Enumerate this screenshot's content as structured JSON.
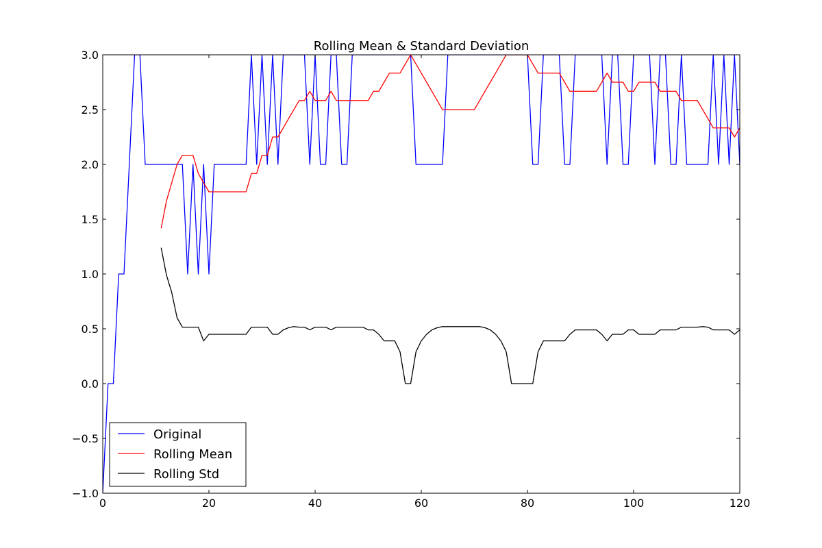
{
  "chart_data": {
    "type": "line",
    "title": "Rolling Mean & Standard Deviation",
    "xlabel": "",
    "ylabel": "",
    "xlim": [
      0,
      120
    ],
    "ylim": [
      -1.0,
      3.0
    ],
    "xticks": [
      0,
      20,
      40,
      60,
      80,
      100,
      120
    ],
    "xtick_labels": [
      "0",
      "20",
      "40",
      "60",
      "80",
      "100",
      "120"
    ],
    "yticks": [
      -1.0,
      -0.5,
      0.0,
      0.5,
      1.0,
      1.5,
      2.0,
      2.5,
      3.0
    ],
    "ytick_labels": [
      "−1.0",
      "−0.5",
      "0.0",
      "0.5",
      "1.0",
      "1.5",
      "2.0",
      "2.5",
      "3.0"
    ],
    "grid": false,
    "legend_position": "lower-left",
    "series": [
      {
        "name": "Original",
        "color": "#0000ff",
        "x": [
          0,
          1,
          2,
          3,
          4,
          5,
          6,
          7,
          8,
          9,
          10,
          11,
          12,
          13,
          14,
          15,
          16,
          17,
          18,
          19,
          20,
          21,
          22,
          23,
          24,
          25,
          26,
          27,
          28,
          29,
          30,
          31,
          32,
          33,
          34,
          35,
          36,
          37,
          38,
          39,
          40,
          41,
          42,
          43,
          44,
          45,
          46,
          47,
          48,
          49,
          50,
          51,
          52,
          53,
          54,
          55,
          56,
          57,
          58,
          59,
          60,
          61,
          62,
          63,
          64,
          65,
          66,
          67,
          68,
          69,
          70,
          71,
          72,
          73,
          74,
          75,
          76,
          77,
          78,
          79,
          80,
          81,
          82,
          83,
          84,
          85,
          86,
          87,
          88,
          89,
          90,
          91,
          92,
          93,
          94,
          95,
          96,
          97,
          98,
          99,
          100,
          101,
          102,
          103,
          104,
          105,
          106,
          107,
          108,
          109,
          110,
          111,
          112,
          113,
          114,
          115,
          116,
          117,
          118,
          119,
          120
        ],
        "y": [
          -1,
          0,
          0,
          1,
          1,
          2,
          3,
          3,
          2,
          2,
          2,
          2,
          2,
          2,
          2,
          2,
          1,
          2,
          1,
          2,
          1,
          2,
          2,
          2,
          2,
          2,
          2,
          2,
          3,
          2,
          3,
          2,
          3,
          2,
          3,
          3,
          3,
          3,
          3,
          2,
          3,
          2,
          2,
          3,
          3,
          2,
          2,
          3,
          3,
          3,
          3,
          3,
          3,
          3,
          3,
          3,
          3,
          3,
          3,
          2,
          2,
          2,
          2,
          2,
          2,
          3,
          3,
          3,
          3,
          3,
          3,
          3,
          3,
          3,
          3,
          3,
          3,
          3,
          3,
          3,
          3,
          2,
          2,
          3,
          3,
          3,
          3,
          2,
          2,
          3,
          3,
          3,
          3,
          3,
          3,
          2,
          3,
          3,
          2,
          2,
          3,
          3,
          3,
          3,
          2,
          3,
          3,
          2,
          2,
          3,
          2,
          2,
          2,
          2,
          2,
          3,
          2,
          3,
          2,
          3,
          2
        ]
      },
      {
        "name": "Rolling Mean",
        "color": "#ff0000",
        "x": [
          11,
          12,
          13,
          14,
          15,
          16,
          17,
          18,
          19,
          20,
          21,
          22,
          23,
          24,
          25,
          26,
          27,
          28,
          29,
          30,
          31,
          32,
          33,
          34,
          35,
          36,
          37,
          38,
          39,
          40,
          41,
          42,
          43,
          44,
          45,
          46,
          47,
          48,
          49,
          50,
          51,
          52,
          53,
          54,
          55,
          56,
          57,
          58,
          59,
          60,
          61,
          62,
          63,
          64,
          65,
          66,
          67,
          68,
          69,
          70,
          71,
          72,
          73,
          74,
          75,
          76,
          77,
          78,
          79,
          80,
          81,
          82,
          83,
          84,
          85,
          86,
          87,
          88,
          89,
          90,
          91,
          92,
          93,
          94,
          95,
          96,
          97,
          98,
          99,
          100,
          101,
          102,
          103,
          104,
          105,
          106,
          107,
          108,
          109,
          110,
          111,
          112,
          113,
          114,
          115,
          116,
          117,
          118,
          119,
          120
        ],
        "y": [
          1.417,
          1.667,
          1.833,
          2.0,
          2.083,
          2.083,
          2.083,
          1.917,
          1.833,
          1.75,
          1.75,
          1.75,
          1.75,
          1.75,
          1.75,
          1.75,
          1.75,
          1.917,
          1.917,
          2.083,
          2.083,
          2.25,
          2.25,
          2.333,
          2.417,
          2.5,
          2.583,
          2.583,
          2.667,
          2.583,
          2.583,
          2.583,
          2.667,
          2.583,
          2.583,
          2.583,
          2.583,
          2.583,
          2.583,
          2.583,
          2.667,
          2.667,
          2.75,
          2.833,
          2.833,
          2.833,
          2.917,
          3.0,
          2.917,
          2.833,
          2.75,
          2.667,
          2.583,
          2.5,
          2.5,
          2.5,
          2.5,
          2.5,
          2.5,
          2.5,
          2.583,
          2.667,
          2.75,
          2.833,
          2.917,
          3.0,
          3.0,
          3.0,
          3.0,
          3.0,
          2.917,
          2.833,
          2.833,
          2.833,
          2.833,
          2.833,
          2.75,
          2.667,
          2.667,
          2.667,
          2.667,
          2.667,
          2.667,
          2.75,
          2.833,
          2.75,
          2.75,
          2.75,
          2.667,
          2.667,
          2.75,
          2.75,
          2.75,
          2.75,
          2.667,
          2.667,
          2.667,
          2.667,
          2.583,
          2.583,
          2.583,
          2.583,
          2.5,
          2.417,
          2.333,
          2.333,
          2.333,
          2.333,
          2.25,
          2.333
        ]
      },
      {
        "name": "Rolling Std",
        "color": "#000000",
        "x": [
          11,
          12,
          13,
          14,
          15,
          16,
          17,
          18,
          19,
          20,
          21,
          22,
          23,
          24,
          25,
          26,
          27,
          28,
          29,
          30,
          31,
          32,
          33,
          34,
          35,
          36,
          37,
          38,
          39,
          40,
          41,
          42,
          43,
          44,
          45,
          46,
          47,
          48,
          49,
          50,
          51,
          52,
          53,
          54,
          55,
          56,
          57,
          58,
          59,
          60,
          61,
          62,
          63,
          64,
          65,
          66,
          67,
          68,
          69,
          70,
          71,
          72,
          73,
          74,
          75,
          76,
          77,
          78,
          79,
          80,
          81,
          82,
          83,
          84,
          85,
          86,
          87,
          88,
          89,
          90,
          91,
          92,
          93,
          94,
          95,
          96,
          97,
          98,
          99,
          100,
          101,
          102,
          103,
          104,
          105,
          106,
          107,
          108,
          109,
          110,
          111,
          112,
          113,
          114,
          115,
          116,
          117,
          118,
          119,
          120
        ],
        "y": [
          1.24,
          0.99,
          0.83,
          0.6,
          0.515,
          0.515,
          0.515,
          0.515,
          0.39,
          0.45,
          0.45,
          0.45,
          0.45,
          0.45,
          0.45,
          0.45,
          0.45,
          0.515,
          0.515,
          0.515,
          0.515,
          0.45,
          0.45,
          0.49,
          0.51,
          0.52,
          0.515,
          0.515,
          0.49,
          0.515,
          0.515,
          0.515,
          0.49,
          0.515,
          0.515,
          0.515,
          0.515,
          0.515,
          0.515,
          0.49,
          0.49,
          0.45,
          0.39,
          0.39,
          0.39,
          0.29,
          0.0,
          0.0,
          0.29,
          0.39,
          0.45,
          0.49,
          0.51,
          0.52,
          0.52,
          0.52,
          0.52,
          0.52,
          0.52,
          0.52,
          0.52,
          0.51,
          0.49,
          0.45,
          0.39,
          0.29,
          0.0,
          0.0,
          0.0,
          0.0,
          0.0,
          0.29,
          0.39,
          0.39,
          0.39,
          0.39,
          0.39,
          0.45,
          0.49,
          0.49,
          0.49,
          0.49,
          0.49,
          0.45,
          0.39,
          0.45,
          0.45,
          0.45,
          0.49,
          0.49,
          0.45,
          0.45,
          0.45,
          0.45,
          0.49,
          0.49,
          0.49,
          0.49,
          0.515,
          0.515,
          0.515,
          0.515,
          0.52,
          0.515,
          0.49,
          0.49,
          0.49,
          0.49,
          0.45,
          0.49
        ]
      }
    ]
  }
}
